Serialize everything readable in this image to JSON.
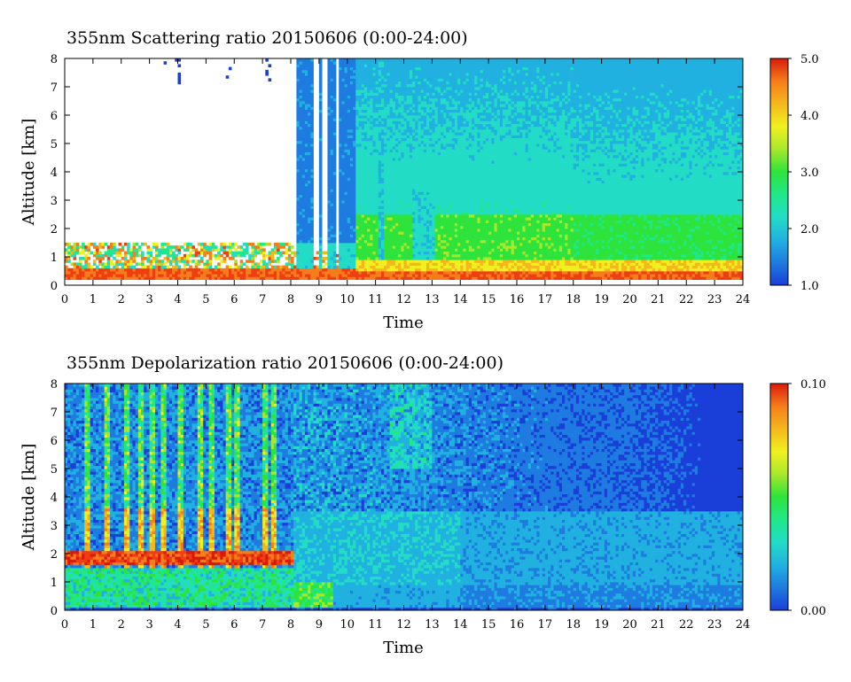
{
  "chart_data": [
    {
      "type": "heatmap",
      "title": "355nm Scattering ratio  20150606 (0:00-24:00)",
      "xlabel": "Time",
      "ylabel": "Altitude [km]",
      "xlim": [
        0,
        24
      ],
      "ylim": [
        0,
        8
      ],
      "x_ticks": [
        "0",
        "1",
        "2",
        "3",
        "4",
        "5",
        "6",
        "7",
        "8",
        "9",
        "10",
        "11",
        "12",
        "13",
        "14",
        "15",
        "16",
        "17",
        "18",
        "19",
        "20",
        "21",
        "22",
        "23",
        "24"
      ],
      "y_ticks": [
        "0",
        "1",
        "2",
        "3",
        "4",
        "5",
        "6",
        "7",
        "8"
      ],
      "colorbar": {
        "min": 1.0,
        "max": 5.0,
        "tick_labels": [
          "1.0",
          "2.0",
          "3.0",
          "4.0",
          "5.0"
        ]
      },
      "features": {
        "surface_layer_value": 4.5,
        "boundary_layer_top_km": 1.5,
        "no_data_region_hours": [
          0,
          8
        ],
        "daytime_background_value": 2.0
      }
    },
    {
      "type": "heatmap",
      "title": "355nm Depolarization ratio  20150606 (0:00-24:00)",
      "xlabel": "Time",
      "ylabel": "Altitude [km]",
      "xlim": [
        0,
        24
      ],
      "ylim": [
        0,
        8
      ],
      "x_ticks": [
        "0",
        "1",
        "2",
        "3",
        "4",
        "5",
        "6",
        "7",
        "8",
        "9",
        "10",
        "11",
        "12",
        "13",
        "14",
        "15",
        "16",
        "17",
        "18",
        "19",
        "20",
        "21",
        "22",
        "23",
        "24"
      ],
      "y_ticks": [
        "0",
        "1",
        "2",
        "3",
        "4",
        "5",
        "6",
        "7",
        "8"
      ],
      "colorbar": {
        "min": 0.0,
        "max": 0.1,
        "tick_labels": [
          "0.00",
          "0.10"
        ]
      },
      "features": {
        "high_depol_layer_km": 1.8,
        "high_depol_period_hours": [
          0,
          8
        ],
        "background_value": 0.015
      }
    }
  ],
  "colors": {
    "colormap": [
      "#1a3fd9",
      "#1e7be0",
      "#21b1e0",
      "#22dcc6",
      "#1fe88a",
      "#2ee33c",
      "#a8e82a",
      "#f0f020",
      "#f5b81c",
      "#f57d1a",
      "#ef3e12",
      "#d91a0a"
    ]
  }
}
